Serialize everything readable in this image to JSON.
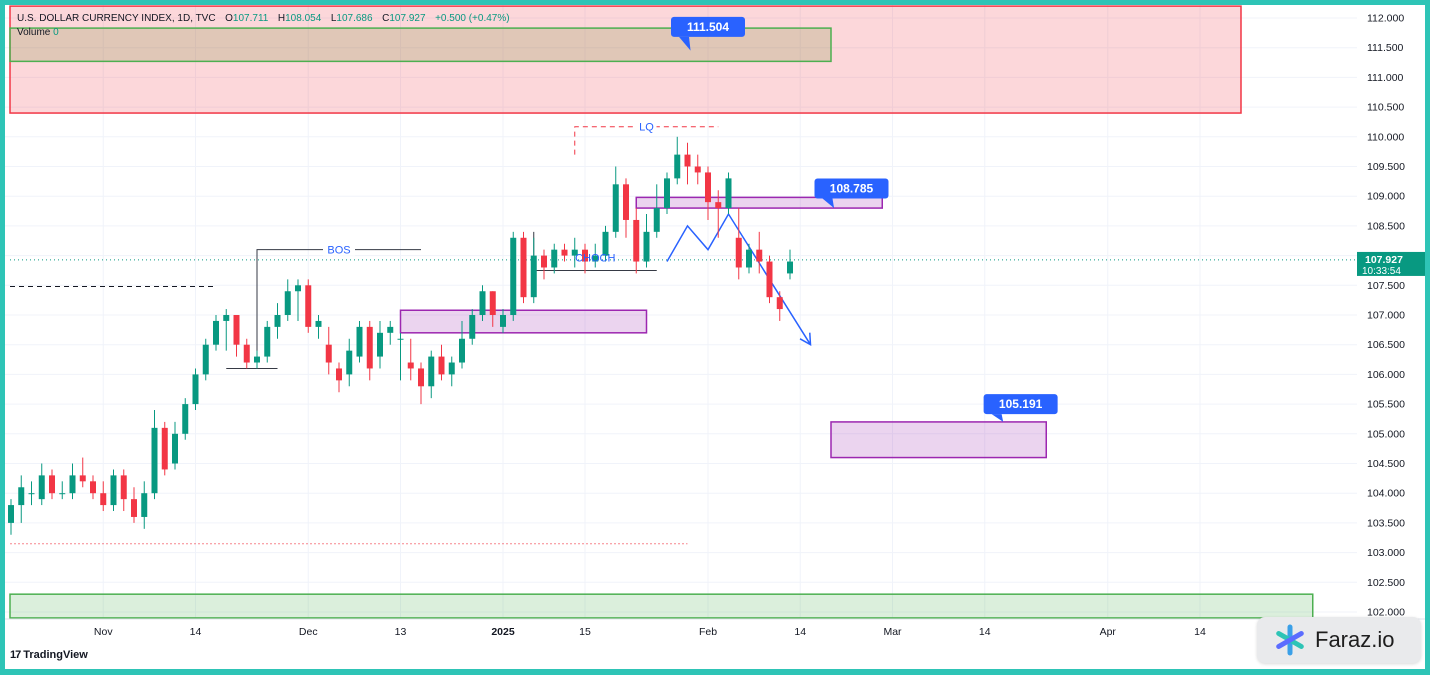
{
  "legend": {
    "title": "U.S. DOLLAR CURRENCY INDEX, 1D, TVC",
    "open_label": "O",
    "open": "107.711",
    "high_label": "H",
    "high": "108.054",
    "low_label": "L",
    "low": "107.686",
    "close_label": "C",
    "close": "107.927",
    "change": "+0.500 (+0.47%)"
  },
  "volume": {
    "label": "Volume",
    "value": "0"
  },
  "last_price": {
    "price": "107.927",
    "countdown": "10:33:54"
  },
  "logo": {
    "text": "TradingView",
    "mark": "17"
  },
  "brand": {
    "text": "Faraz.io"
  },
  "colors": {
    "up": "#089981",
    "down": "#f23645",
    "zone_red": "#f23645",
    "zone_green": "#4caf50",
    "zone_purple": "#9c27b0",
    "tag_blue": "#2962ff",
    "path_blue": "#2962ff",
    "frame": "#2ec4b6"
  },
  "chart_data": {
    "type": "candlestick",
    "y_axis": {
      "min": 102.0,
      "max": 112.0,
      "side": "right",
      "ticks": [
        "112.000",
        "111.500",
        "111.000",
        "110.500",
        "110.000",
        "109.500",
        "109.000",
        "108.500",
        "108.000",
        "107.500",
        "107.000",
        "106.500",
        "106.000",
        "105.500",
        "105.000",
        "104.500",
        "104.000",
        "103.500",
        "103.000",
        "102.500",
        "102.000"
      ]
    },
    "x_axis": {
      "ticks": [
        {
          "label": "Nov",
          "bar": 9
        },
        {
          "label": "14",
          "bar": 18
        },
        {
          "label": "Dec",
          "bar": 29
        },
        {
          "label": "13",
          "bar": 38
        },
        {
          "label": "2025",
          "bar": 48,
          "bold": true
        },
        {
          "label": "15",
          "bar": 56
        },
        {
          "label": "Feb",
          "bar": 68
        },
        {
          "label": "14",
          "bar": 77
        },
        {
          "label": "Mar",
          "bar": 86
        },
        {
          "label": "14",
          "bar": 95
        },
        {
          "label": "Apr",
          "bar": 107
        },
        {
          "label": "14",
          "bar": 116
        }
      ]
    },
    "candles": [
      [
        103.5,
        103.8,
        103.3,
        103.9
      ],
      [
        103.8,
        104.1,
        103.5,
        104.3
      ],
      [
        104.0,
        104.0,
        103.8,
        104.2
      ],
      [
        103.9,
        104.3,
        103.8,
        104.5
      ],
      [
        104.3,
        104.0,
        103.9,
        104.4
      ],
      [
        104.0,
        104.0,
        103.9,
        104.2
      ],
      [
        104.0,
        104.3,
        103.9,
        104.5
      ],
      [
        104.3,
        104.2,
        104.1,
        104.6
      ],
      [
        104.2,
        104.0,
        103.9,
        104.3
      ],
      [
        104.0,
        103.8,
        103.7,
        104.2
      ],
      [
        103.8,
        104.3,
        103.7,
        104.4
      ],
      [
        104.3,
        103.9,
        103.7,
        104.4
      ],
      [
        103.9,
        103.6,
        103.5,
        104.1
      ],
      [
        103.6,
        104.0,
        103.4,
        104.2
      ],
      [
        104.0,
        105.1,
        103.9,
        105.4
      ],
      [
        105.1,
        104.4,
        104.3,
        105.2
      ],
      [
        104.5,
        105.0,
        104.4,
        105.2
      ],
      [
        105.0,
        105.5,
        104.9,
        105.6
      ],
      [
        105.5,
        106.0,
        105.4,
        106.1
      ],
      [
        106.0,
        106.5,
        105.9,
        106.6
      ],
      [
        106.5,
        106.9,
        106.4,
        107.0
      ],
      [
        106.9,
        107.0,
        106.4,
        107.1
      ],
      [
        107.0,
        106.5,
        106.3,
        107.0
      ],
      [
        106.5,
        106.2,
        106.1,
        106.6
      ],
      [
        106.2,
        106.3,
        106.1,
        106.4
      ],
      [
        106.3,
        106.8,
        106.2,
        106.9
      ],
      [
        106.8,
        107.0,
        106.6,
        107.2
      ],
      [
        107.0,
        107.4,
        106.9,
        107.6
      ],
      [
        107.4,
        107.5,
        106.9,
        107.6
      ],
      [
        107.5,
        106.8,
        106.7,
        107.6
      ],
      [
        106.8,
        106.9,
        106.6,
        107.0
      ],
      [
        106.5,
        106.2,
        106.0,
        106.8
      ],
      [
        106.1,
        105.9,
        105.7,
        106.2
      ],
      [
        106.0,
        106.4,
        105.8,
        106.6
      ],
      [
        106.3,
        106.8,
        106.2,
        106.9
      ],
      [
        106.8,
        106.1,
        105.9,
        106.9
      ],
      [
        106.3,
        106.7,
        106.1,
        106.9
      ],
      [
        106.7,
        106.8,
        106.5,
        106.9
      ],
      [
        106.6,
        106.6,
        105.9,
        106.7
      ],
      [
        106.2,
        106.1,
        105.9,
        106.6
      ],
      [
        106.1,
        105.8,
        105.5,
        106.2
      ],
      [
        105.8,
        106.3,
        105.6,
        106.4
      ],
      [
        106.3,
        106.0,
        105.9,
        106.5
      ],
      [
        106.0,
        106.2,
        105.8,
        106.3
      ],
      [
        106.2,
        106.6,
        106.1,
        106.9
      ],
      [
        106.6,
        107.0,
        106.5,
        107.1
      ],
      [
        107.0,
        107.4,
        106.9,
        107.5
      ],
      [
        107.4,
        107.0,
        106.8,
        107.4
      ],
      [
        106.8,
        107.0,
        106.7,
        107.1
      ],
      [
        107.0,
        108.3,
        106.9,
        108.4
      ],
      [
        108.3,
        107.3,
        107.2,
        108.4
      ],
      [
        107.3,
        108.0,
        107.2,
        108.3
      ],
      [
        108.0,
        107.8,
        107.6,
        108.1
      ],
      [
        107.8,
        108.1,
        107.7,
        108.2
      ],
      [
        108.1,
        108.0,
        107.9,
        108.2
      ],
      [
        108.0,
        108.1,
        107.8,
        108.3
      ],
      [
        108.1,
        107.9,
        107.7,
        108.2
      ],
      [
        107.9,
        108.0,
        107.8,
        108.2
      ],
      [
        108.0,
        108.4,
        107.9,
        108.5
      ],
      [
        108.4,
        109.2,
        108.3,
        109.5
      ],
      [
        109.2,
        108.6,
        108.3,
        109.3
      ],
      [
        108.6,
        107.9,
        107.7,
        108.8
      ],
      [
        107.9,
        108.4,
        107.8,
        108.7
      ],
      [
        108.4,
        108.8,
        108.3,
        109.2
      ],
      [
        108.8,
        109.3,
        108.7,
        109.4
      ],
      [
        109.3,
        109.7,
        109.2,
        110.0
      ],
      [
        109.7,
        109.5,
        109.2,
        109.9
      ],
      [
        109.5,
        109.4,
        109.2,
        109.7
      ],
      [
        109.4,
        108.9,
        108.6,
        109.5
      ],
      [
        108.9,
        108.8,
        108.3,
        109.1
      ],
      [
        108.8,
        109.3,
        108.7,
        109.4
      ],
      [
        108.3,
        107.8,
        107.6,
        108.8
      ],
      [
        107.8,
        108.1,
        107.7,
        108.2
      ],
      [
        108.1,
        107.9,
        107.7,
        108.4
      ],
      [
        107.9,
        107.3,
        107.2,
        108.0
      ],
      [
        107.3,
        107.1,
        106.9,
        107.4
      ],
      [
        107.7,
        107.9,
        107.6,
        108.1
      ]
    ],
    "zones": [
      {
        "color": "red",
        "x_from": 0,
        "x_to": 120,
        "y_from": 110.4,
        "y_to": 112.2
      },
      {
        "color": "green",
        "x_from": 0,
        "x_to": 80,
        "y_from": 111.27,
        "y_to": 111.83
      },
      {
        "color": "purple",
        "x_from": 61,
        "x_to": 85,
        "y_from": 108.8,
        "y_to": 108.98
      },
      {
        "color": "purple",
        "x_from": 38,
        "x_to": 62,
        "y_from": 106.7,
        "y_to": 107.08
      },
      {
        "color": "purple",
        "x_from": 80,
        "x_to": 101,
        "y_from": 104.6,
        "y_to": 105.2
      },
      {
        "color": "green",
        "x_from": 0,
        "x_to": 127,
        "y_from": 101.9,
        "y_to": 102.3
      }
    ],
    "price_tags": [
      "111.504",
      "108.785",
      "105.191"
    ],
    "annotations": {
      "lq": "LQ",
      "bos": "BOS",
      "choch": "CHOCH"
    },
    "projection_path": [
      [
        64,
        107.9
      ],
      [
        66,
        108.5
      ],
      [
        68,
        108.1
      ],
      [
        70,
        108.7
      ],
      [
        78,
        106.5
      ]
    ],
    "last_price_level": 107.927,
    "grid": true
  }
}
